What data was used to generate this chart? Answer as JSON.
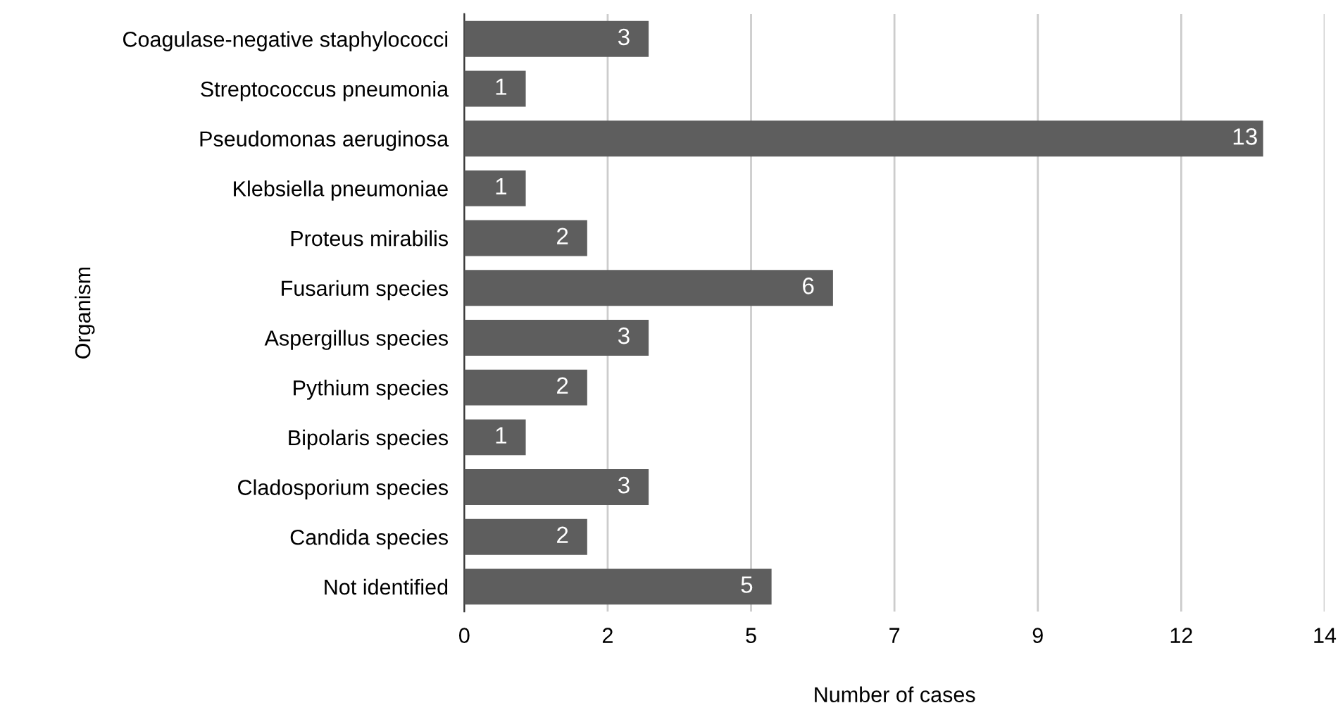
{
  "chart_data": {
    "type": "bar",
    "orientation": "horizontal",
    "xlabel": "Number of cases",
    "ylabel": "Organism",
    "categories": [
      "Coagulase-negative staphylococci",
      "Streptococcus pneumonia",
      "Pseudomonas aeruginosa",
      "Klebsiella pneumoniae",
      "Proteus mirabilis",
      "Fusarium species",
      "Aspergillus species",
      "Pythium species",
      "Bipolaris species",
      "Cladosporium species",
      "Candida species",
      "Not identified"
    ],
    "values": [
      3,
      1,
      13,
      1,
      2,
      6,
      3,
      2,
      1,
      3,
      2,
      5
    ],
    "color": "#5e5e5e",
    "xlim": [
      0,
      14
    ],
    "xticks": [
      0,
      {
        "value": 2.3333,
        "label": "2"
      },
      {
        "value": 4.6667,
        "label": "5"
      },
      7,
      {
        "value": 9.3333,
        "label": "9"
      },
      {
        "value": 11.6667,
        "label": "12"
      },
      14
    ],
    "grid": "x",
    "data_labels": true,
    "legend": false
  }
}
